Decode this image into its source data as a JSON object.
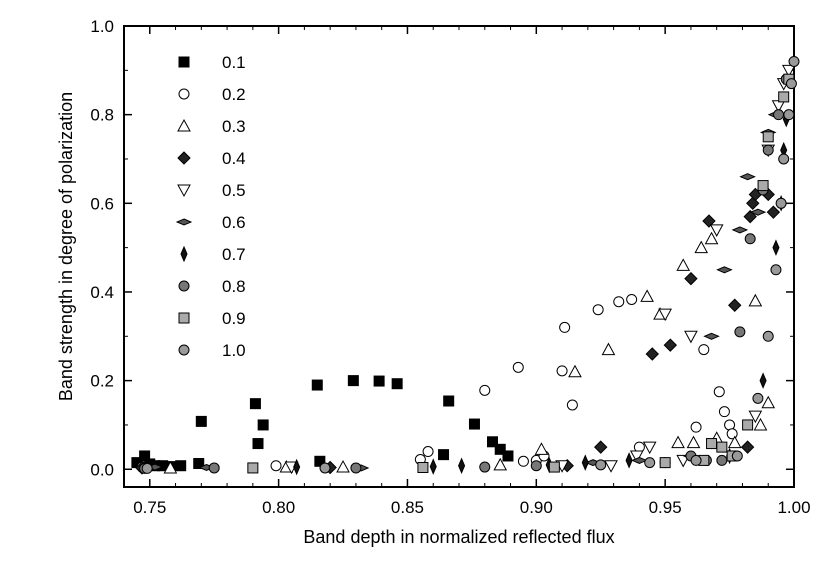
{
  "chart_data": {
    "type": "scatter",
    "title": "",
    "xlabel": "Band depth in normalized reflected flux",
    "ylabel": "Band strength in degree of polarization",
    "xlim": [
      0.74,
      1.0
    ],
    "ylim": [
      -0.04,
      1.0
    ],
    "x_ticks": [
      0.75,
      0.8,
      0.85,
      0.9,
      0.95,
      1.0
    ],
    "x_tick_labels": [
      "0.75",
      "0.80",
      "0.85",
      "0.90",
      "0.95",
      "1.00"
    ],
    "y_ticks": [
      0.0,
      0.2,
      0.4,
      0.6,
      0.8,
      1.0
    ],
    "y_tick_labels": [
      "0.0",
      "0.2",
      "0.4",
      "0.6",
      "0.8",
      "1.0"
    ],
    "grid": false,
    "legend_position": "top-left",
    "series": [
      {
        "name": "0.1",
        "marker": "square",
        "fill": "#000000",
        "stroke": "#000000",
        "points": [
          [
            0.745,
            0.015
          ],
          [
            0.748,
            0.03
          ],
          [
            0.75,
            0.012
          ],
          [
            0.752,
            0.008
          ],
          [
            0.755,
            0.008
          ],
          [
            0.758,
            0.006
          ],
          [
            0.762,
            0.008
          ],
          [
            0.769,
            0.013
          ],
          [
            0.77,
            0.108
          ],
          [
            0.791,
            0.148
          ],
          [
            0.792,
            0.058
          ],
          [
            0.794,
            0.1
          ],
          [
            0.815,
            0.19
          ],
          [
            0.816,
            0.018
          ],
          [
            0.829,
            0.2
          ],
          [
            0.839,
            0.199
          ],
          [
            0.846,
            0.193
          ],
          [
            0.864,
            0.033
          ],
          [
            0.866,
            0.154
          ],
          [
            0.876,
            0.102
          ],
          [
            0.883,
            0.062
          ],
          [
            0.886,
            0.045
          ],
          [
            0.889,
            0.03
          ]
        ]
      },
      {
        "name": "0.2",
        "marker": "circle",
        "fill": "#ffffff",
        "stroke": "#000000",
        "points": [
          [
            0.747,
            0.005
          ],
          [
            0.799,
            0.008
          ],
          [
            0.855,
            0.022
          ],
          [
            0.858,
            0.04
          ],
          [
            0.88,
            0.178
          ],
          [
            0.893,
            0.23
          ],
          [
            0.895,
            0.018
          ],
          [
            0.9,
            0.02
          ],
          [
            0.903,
            0.03
          ],
          [
            0.91,
            0.222
          ],
          [
            0.911,
            0.32
          ],
          [
            0.914,
            0.145
          ],
          [
            0.924,
            0.36
          ],
          [
            0.932,
            0.378
          ],
          [
            0.937,
            0.383
          ],
          [
            0.94,
            0.05
          ],
          [
            0.962,
            0.095
          ],
          [
            0.965,
            0.27
          ],
          [
            0.971,
            0.175
          ],
          [
            0.973,
            0.13
          ],
          [
            0.975,
            0.1
          ],
          [
            0.976,
            0.08
          ]
        ]
      },
      {
        "name": "0.3",
        "marker": "triangle-up",
        "fill": "#ffffff",
        "stroke": "#000000",
        "points": [
          [
            0.758,
            0.003
          ],
          [
            0.803,
            0.005
          ],
          [
            0.825,
            0.005
          ],
          [
            0.886,
            0.01
          ],
          [
            0.902,
            0.045
          ],
          [
            0.915,
            0.22
          ],
          [
            0.928,
            0.27
          ],
          [
            0.943,
            0.39
          ],
          [
            0.948,
            0.35
          ],
          [
            0.955,
            0.06
          ],
          [
            0.957,
            0.46
          ],
          [
            0.961,
            0.06
          ],
          [
            0.964,
            0.5
          ],
          [
            0.968,
            0.52
          ],
          [
            0.97,
            0.07
          ],
          [
            0.977,
            0.06
          ],
          [
            0.985,
            0.38
          ],
          [
            0.987,
            0.1
          ],
          [
            0.99,
            0.15
          ]
        ]
      },
      {
        "name": "0.4",
        "marker": "diamond",
        "fill": "#222222",
        "stroke": "#000000",
        "points": [
          [
            0.747,
            0.003
          ],
          [
            0.82,
            0.004
          ],
          [
            0.912,
            0.008
          ],
          [
            0.925,
            0.05
          ],
          [
            0.945,
            0.26
          ],
          [
            0.952,
            0.28
          ],
          [
            0.96,
            0.43
          ],
          [
            0.967,
            0.56
          ],
          [
            0.977,
            0.37
          ],
          [
            0.982,
            0.05
          ],
          [
            0.983,
            0.57
          ],
          [
            0.984,
            0.6
          ],
          [
            0.985,
            0.62
          ],
          [
            0.99,
            0.62
          ],
          [
            0.992,
            0.58
          ]
        ]
      },
      {
        "name": "0.5",
        "marker": "triangle-down",
        "fill": "#ffffff",
        "stroke": "#000000",
        "points": [
          [
            0.805,
            0.005
          ],
          [
            0.91,
            0.008
          ],
          [
            0.929,
            0.008
          ],
          [
            0.939,
            0.03
          ],
          [
            0.944,
            0.05
          ],
          [
            0.95,
            0.35
          ],
          [
            0.957,
            0.02
          ],
          [
            0.96,
            0.3
          ],
          [
            0.97,
            0.54
          ],
          [
            0.985,
            0.12
          ],
          [
            0.99,
            0.72
          ],
          [
            0.994,
            0.82
          ],
          [
            0.996,
            0.87
          ],
          [
            0.998,
            0.9
          ]
        ]
      },
      {
        "name": "0.6",
        "marker": "diamond-wide",
        "fill": "#555555",
        "stroke": "#000000",
        "points": [
          [
            0.752,
            0.005
          ],
          [
            0.772,
            0.004
          ],
          [
            0.832,
            0.003
          ],
          [
            0.922,
            0.015
          ],
          [
            0.94,
            0.02
          ],
          [
            0.96,
            0.03
          ],
          [
            0.968,
            0.3
          ],
          [
            0.973,
            0.45
          ],
          [
            0.979,
            0.54
          ],
          [
            0.982,
            0.66
          ],
          [
            0.986,
            0.58
          ],
          [
            0.99,
            0.76
          ],
          [
            0.993,
            0.8
          ]
        ]
      },
      {
        "name": "0.7",
        "marker": "diamond-tall",
        "fill": "#111111",
        "stroke": "#000000",
        "points": [
          [
            0.807,
            0.005
          ],
          [
            0.86,
            0.006
          ],
          [
            0.871,
            0.008
          ],
          [
            0.905,
            0.01
          ],
          [
            0.919,
            0.015
          ],
          [
            0.936,
            0.02
          ],
          [
            0.975,
            0.03
          ],
          [
            0.988,
            0.2
          ],
          [
            0.993,
            0.5
          ],
          [
            0.995,
            0.6
          ],
          [
            0.996,
            0.72
          ],
          [
            0.997,
            0.79
          ]
        ]
      },
      {
        "name": "0.8",
        "marker": "circle",
        "fill": "#777777",
        "stroke": "#000000",
        "points": [
          [
            0.748,
            0.002
          ],
          [
            0.775,
            0.003
          ],
          [
            0.83,
            0.003
          ],
          [
            0.88,
            0.005
          ],
          [
            0.9,
            0.008
          ],
          [
            0.95,
            0.015
          ],
          [
            0.96,
            0.03
          ],
          [
            0.966,
            0.02
          ],
          [
            0.972,
            0.02
          ],
          [
            0.979,
            0.31
          ],
          [
            0.983,
            0.52
          ],
          [
            0.988,
            0.63
          ],
          [
            0.99,
            0.72
          ],
          [
            0.994,
            0.8
          ],
          [
            0.997,
            0.88
          ]
        ]
      },
      {
        "name": "0.9",
        "marker": "square",
        "fill": "#aaaaaa",
        "stroke": "#000000",
        "points": [
          [
            0.79,
            0.003
          ],
          [
            0.856,
            0.004
          ],
          [
            0.907,
            0.005
          ],
          [
            0.95,
            0.015
          ],
          [
            0.965,
            0.02
          ],
          [
            0.968,
            0.058
          ],
          [
            0.972,
            0.05
          ],
          [
            0.976,
            0.03
          ],
          [
            0.982,
            0.1
          ],
          [
            0.988,
            0.64
          ],
          [
            0.99,
            0.75
          ],
          [
            0.996,
            0.84
          ],
          [
            0.998,
            0.88
          ]
        ]
      },
      {
        "name": "1.0",
        "marker": "circle",
        "fill": "#999999",
        "stroke": "#000000",
        "points": [
          [
            0.749,
            0.002
          ],
          [
            0.818,
            0.003
          ],
          [
            0.925,
            0.01
          ],
          [
            0.944,
            0.015
          ],
          [
            0.962,
            0.02
          ],
          [
            0.978,
            0.03
          ],
          [
            0.986,
            0.16
          ],
          [
            0.99,
            0.3
          ],
          [
            0.993,
            0.45
          ],
          [
            0.995,
            0.6
          ],
          [
            0.996,
            0.7
          ],
          [
            0.998,
            0.8
          ],
          [
            0.999,
            0.87
          ],
          [
            1.0,
            0.92
          ]
        ]
      }
    ]
  }
}
